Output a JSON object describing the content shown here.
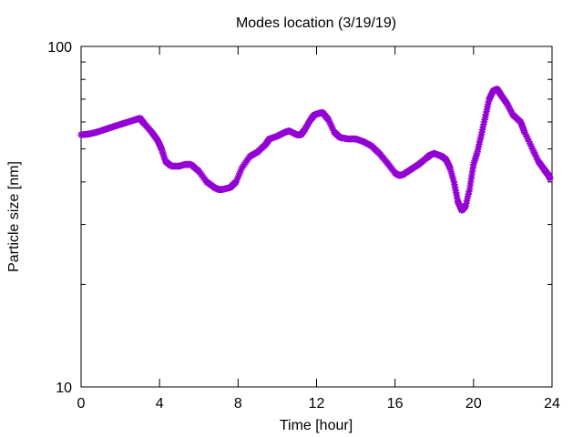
{
  "chart_data": {
    "type": "scatter",
    "title": "Modes location (3/19/19)",
    "xlabel": "Time [hour]",
    "ylabel": "Particle size [nm]",
    "xlim": [
      0,
      24
    ],
    "ylim": [
      10,
      100
    ],
    "yscale": "log",
    "grid": false,
    "legend": "none",
    "x_ticks": [
      0,
      4,
      8,
      12,
      16,
      20,
      24
    ],
    "x_tick_labels": [
      "0",
      "4",
      "8",
      "12",
      "16",
      "20",
      "24"
    ],
    "y_major_ticks": [
      10,
      100
    ],
    "y_tick_labels": [
      "10",
      "100"
    ],
    "y_minor_ticks": [
      20,
      30,
      40,
      50,
      60,
      70,
      80,
      90
    ],
    "colors": {
      "series": "#9400d3",
      "axis": "#000000",
      "background": "#ffffff"
    },
    "series": [
      {
        "marker": "asterisk",
        "x": [
          0.0,
          0.4,
          0.8,
          1.2,
          1.6,
          2.0,
          2.4,
          2.8,
          3.0,
          3.2,
          3.6,
          3.9,
          4.1,
          4.3,
          4.6,
          5.0,
          5.3,
          5.6,
          6.0,
          6.4,
          6.8,
          7.0,
          7.2,
          7.6,
          7.9,
          8.2,
          8.6,
          9.0,
          9.4,
          9.6,
          10.0,
          10.4,
          10.6,
          11.0,
          11.2,
          11.4,
          11.7,
          11.9,
          12.1,
          12.3,
          12.6,
          12.9,
          13.2,
          13.6,
          14.0,
          14.4,
          14.8,
          15.2,
          15.6,
          16.0,
          16.2,
          16.4,
          16.8,
          17.2,
          17.6,
          17.8,
          18.0,
          18.2,
          18.4,
          18.6,
          18.8,
          19.0,
          19.2,
          19.4,
          19.6,
          19.8,
          20.0,
          20.2,
          20.4,
          20.6,
          20.8,
          21.0,
          21.2,
          21.4,
          21.7,
          22.0,
          22.4,
          22.6,
          23.0,
          23.3,
          23.6,
          23.8,
          23.9
        ],
        "y": [
          55.0,
          55.3,
          56.0,
          57.0,
          58.0,
          59.0,
          60.0,
          61.0,
          61.5,
          59.5,
          56.0,
          53.0,
          50.0,
          46.0,
          44.5,
          44.5,
          45.0,
          45.0,
          43.0,
          40.0,
          38.5,
          38.0,
          38.0,
          38.5,
          40.0,
          44.0,
          47.5,
          49.0,
          51.5,
          53.5,
          54.5,
          56.0,
          56.5,
          55.0,
          55.0,
          57.0,
          61.0,
          63.0,
          63.5,
          64.0,
          61.0,
          56.0,
          54.0,
          53.5,
          53.5,
          52.5,
          51.0,
          48.5,
          45.5,
          42.5,
          41.8,
          42.0,
          43.5,
          45.0,
          47.0,
          48.0,
          48.5,
          48.0,
          47.5,
          46.5,
          44.0,
          40.0,
          35.0,
          33.0,
          34.0,
          38.0,
          45.0,
          49.0,
          55.0,
          62.0,
          70.0,
          74.0,
          75.0,
          72.0,
          68.0,
          63.0,
          60.0,
          56.0,
          50.0,
          46.0,
          43.5,
          42.0,
          41.0
        ]
      }
    ]
  }
}
